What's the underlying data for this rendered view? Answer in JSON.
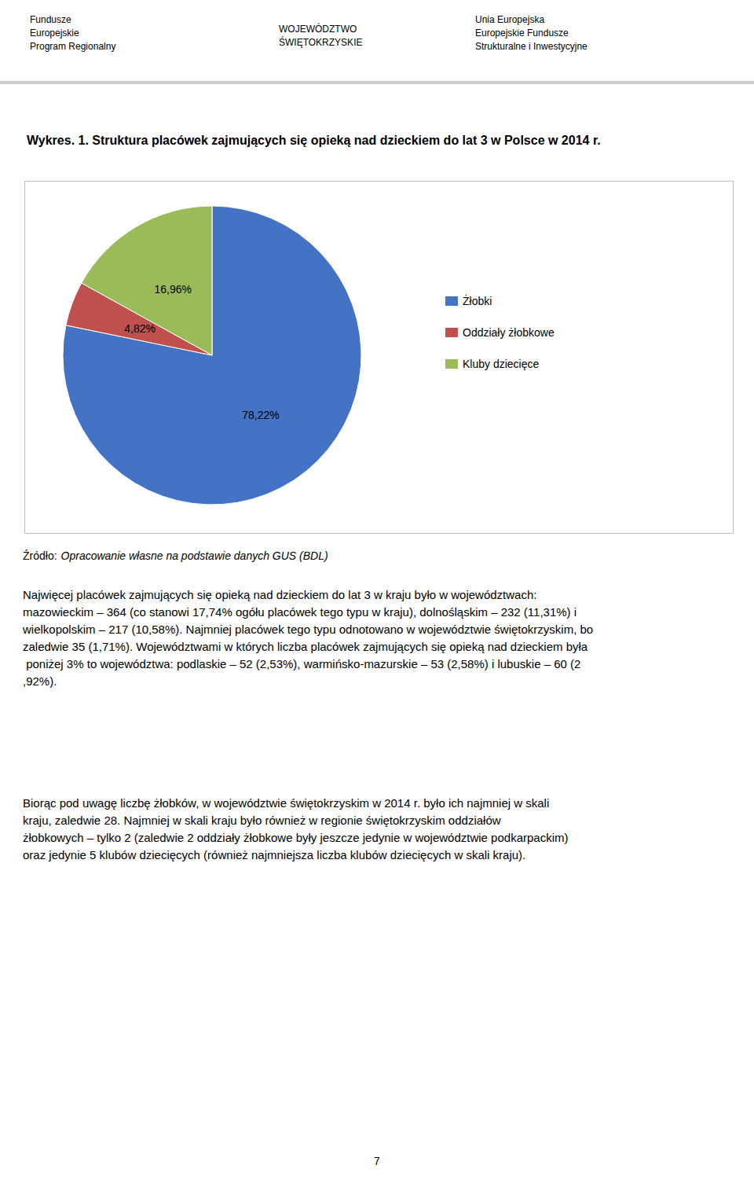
{
  "chart_data": {
    "type": "pie",
    "title": "Wykres. 1. Struktura placówek zajmujących się opieką nad dzieckiem do lat 3 w Polsce w 2014 r.",
    "categories": [
      "Żłobki",
      "Oddziały żłobkowe",
      "Kluby dziecięce"
    ],
    "values": [
      78.22,
      4.82,
      16.96
    ],
    "value_labels": [
      "78,22%",
      "4,82%",
      "16,96%"
    ],
    "colors": [
      "#4472C4",
      "#C0504D",
      "#9BBB59"
    ],
    "data_labels": true,
    "legend": "right",
    "annotations": [
      "Fundusze\nEuropejskie\nProgram Regionalny",
      "WOJEWÓDZTWO\nŚWIĘTOKRZYSKIE",
      "Unia Europejska\nEuropejskie Fundusze\nStrukturalne i Inwestycyjne",
      "Źródło:",
      "Opracowanie własne na podstawie danych GUS (BDL)",
      "Najwięcej placówek zajmujących się opieką nad dzieckiem do lat 3 w kraju było w województwach: mazowieckim – 364 (co stanowi 17,74% ogółu placówek tego typu w kraju), dolnośląskim – 232 (11,31%) i wielkopolskim – 217 (10,58%). Najmniej placówek tego typu odnotowano w województwie świętokrzyskim, bo zaledwie 35 (1,71%). Województwami w których liczba placówek zajmujących się opieką nad dzieckiem była poniżej 3% to województwa: podlaskie – 52 (2,53%), warmińsko-mazurskie – 53 (2,58%) i lubuskie – 60 (2,92%).",
      "Biorąc pod uwagę liczbę żłobków, w województwie świętokrzyskim w 2014 r. było ich najmniej w skali kraju, zaledwie 28. Najmniej w skali kraju było również w regionie świętokrzyskim oddziałów żłobkowych – tylko 2 (zaledwie 2 oddziały żłobkowe były jeszcze jedynie w województwie podkarpackim) oraz jedynie 5 klubów dziecięcych (również najmniejsza liczba klubów dziecięcych w skali kraju).",
      "7"
    ]
  }
}
